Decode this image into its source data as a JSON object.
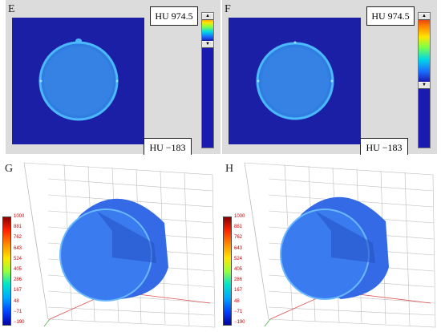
{
  "panels": {
    "E": {
      "letter": "E",
      "hu_max": "HU 974.5",
      "hu_min": "HU −183",
      "slider_level": 0.85
    },
    "F": {
      "letter": "F",
      "hu_max": "HU 974.5",
      "hu_min": "HU −183",
      "slider_level": 0.55
    },
    "G": {
      "letter": "G"
    },
    "H": {
      "letter": "H"
    }
  },
  "legend_ticks": [
    "1000",
    "881",
    "762",
    "643",
    "524",
    "405",
    "286",
    "167",
    "48",
    "−71",
    "−190"
  ],
  "colors": {
    "ct_background": "#1a1fa6",
    "ring": "#3ab0ff",
    "disc": "#2f7de0",
    "cylinder": "#2a62e6",
    "grid": "#bdbdbd"
  },
  "icons": {
    "slider_up": "triangle-up-icon",
    "slider_down": "triangle-down-icon"
  }
}
